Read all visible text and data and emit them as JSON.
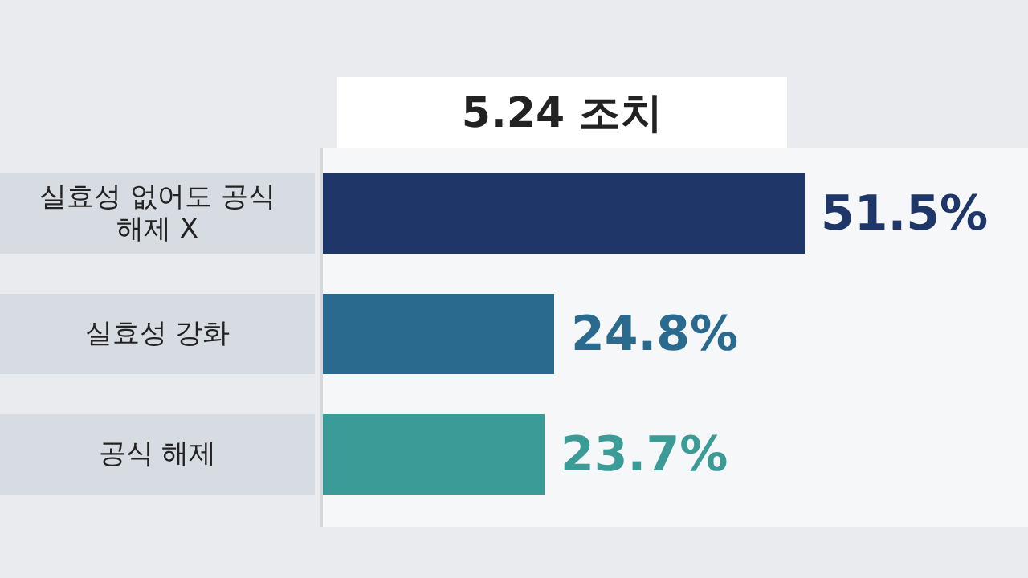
{
  "chart_data": {
    "type": "bar",
    "orientation": "horizontal",
    "title": "5.24 조치",
    "categories": [
      "실효성 없어도 공식 해제 X",
      "실효성 강화",
      "공식 해제"
    ],
    "values": [
      51.5,
      24.8,
      23.7
    ],
    "colors": [
      "#1e3668",
      "#2a6a8e",
      "#3b9b97"
    ],
    "value_labels": [
      "51.5%",
      "24.8%",
      "23.7%"
    ]
  }
}
